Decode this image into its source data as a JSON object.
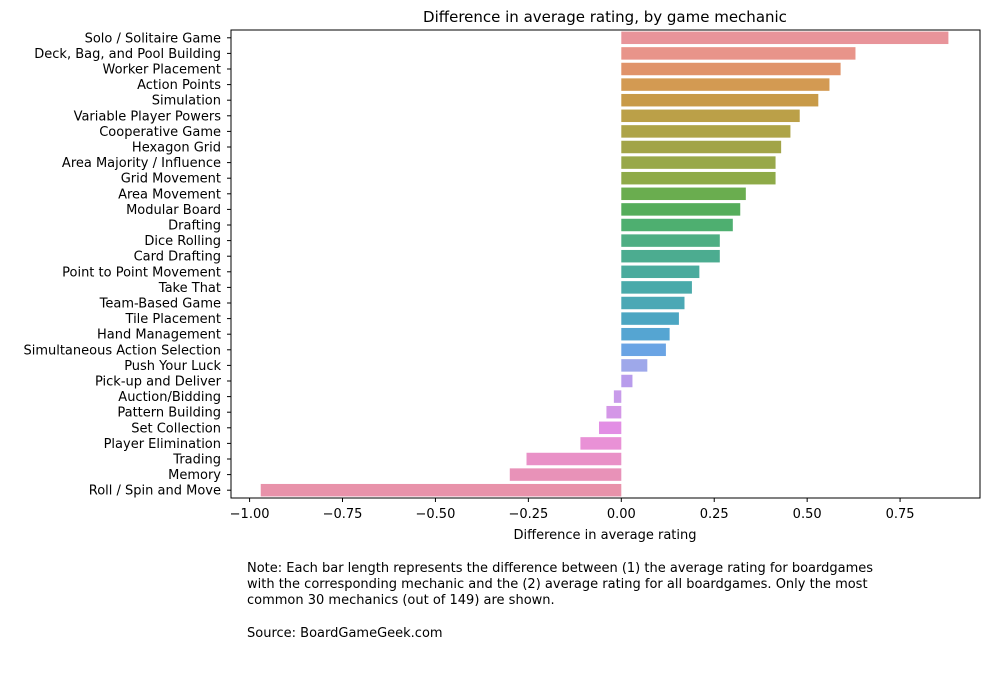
{
  "chart_data": {
    "type": "bar",
    "orientation": "horizontal",
    "title": "Difference in average rating, by game mechanic",
    "xlabel": "Difference in average rating",
    "ylabel": "",
    "xlim": [
      -1.05,
      0.965
    ],
    "xticks": [
      -1.0,
      -0.75,
      -0.5,
      -0.25,
      0.0,
      0.25,
      0.5,
      0.75
    ],
    "xtick_labels": [
      "−1.00",
      "−0.75",
      "−0.50",
      "−0.25",
      "0.00",
      "0.25",
      "0.50",
      "0.75"
    ],
    "grid": false,
    "categories": [
      "Solo / Solitaire Game",
      "Deck, Bag, and Pool Building",
      "Worker Placement",
      "Action Points",
      "Simulation",
      "Variable Player Powers",
      "Cooperative Game",
      "Hexagon Grid",
      "Area Majority / Influence",
      "Grid Movement",
      "Area Movement",
      "Modular Board",
      "Drafting",
      "Dice Rolling",
      "Card Drafting",
      "Point to Point Movement",
      "Take That",
      "Team-Based Game",
      "Tile Placement",
      "Hand Management",
      "Simultaneous Action Selection",
      "Push Your Luck",
      "Pick-up and Deliver",
      "Auction/Bidding",
      "Pattern Building",
      "Set Collection",
      "Player Elimination",
      "Trading",
      "Memory",
      "Roll / Spin and Move"
    ],
    "values": [
      0.88,
      0.63,
      0.59,
      0.56,
      0.53,
      0.48,
      0.455,
      0.43,
      0.415,
      0.415,
      0.335,
      0.32,
      0.3,
      0.265,
      0.265,
      0.21,
      0.19,
      0.17,
      0.155,
      0.13,
      0.12,
      0.07,
      0.03,
      -0.02,
      -0.04,
      -0.06,
      -0.11,
      -0.255,
      -0.3,
      -0.97
    ],
    "colors": [
      "#e8949a",
      "#e8948a",
      "#e0936a",
      "#d39a52",
      "#c89a48",
      "#bba048",
      "#aea448",
      "#a2a448",
      "#98a84a",
      "#8eaa48",
      "#6aad4f",
      "#55ad5b",
      "#4eaf70",
      "#4eae83",
      "#4cac90",
      "#4aab9d",
      "#4aaaaa",
      "#4ba8b5",
      "#4ca6c2",
      "#55a5d2",
      "#6aa4e4",
      "#9ea8ea",
      "#b89cec",
      "#c89bea",
      "#d497e7",
      "#e28ee4",
      "#e991d6",
      "#e991c7",
      "#e892b8",
      "#e892aa"
    ]
  },
  "notes": {
    "note": "Note: Each bar length represents the difference between (1) the average rating for boardgames\nwith the corresponding mechanic and the (2) average rating for all boardgames. Only the most\ncommon 30 mechanics (out of 149) are shown.",
    "source": "Source: BoardGameGeek.com"
  }
}
